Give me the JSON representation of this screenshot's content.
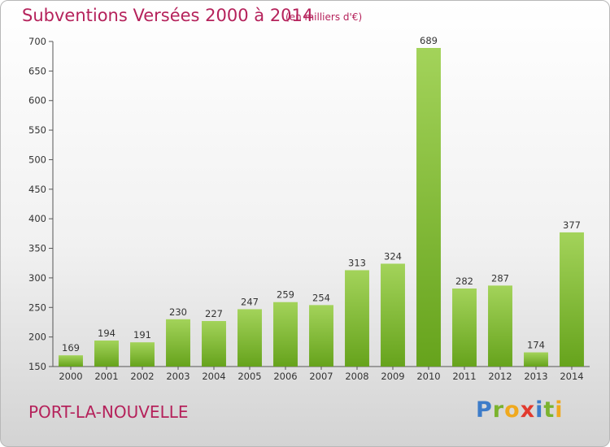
{
  "title": "Subventions Versées 2000 à 2014",
  "unit_note": "(en milliers d'€)",
  "location": "PORT-LA-NOUVELLE",
  "brand": {
    "letters": [
      {
        "char": "P",
        "color": "#3d7cc9"
      },
      {
        "char": "r",
        "color": "#7bb32e"
      },
      {
        "char": "o",
        "color": "#f0a91e"
      },
      {
        "char": "x",
        "color": "#e23a2e"
      },
      {
        "char": "i",
        "color": "#3d7cc9"
      },
      {
        "char": "t",
        "color": "#7bb32e"
      },
      {
        "char": "i",
        "color": "#f0a91e"
      }
    ]
  },
  "colors": {
    "bar_light": "#a3d35a",
    "bar_dark": "#66a31c",
    "title": "#b5225b"
  },
  "chart_data": {
    "type": "bar",
    "title": "Subventions Versées 2000 à 2014",
    "subtitle": "(en milliers d'€)",
    "categories": [
      "2000",
      "2001",
      "2002",
      "2003",
      "2004",
      "2005",
      "2006",
      "2007",
      "2008",
      "2009",
      "2010",
      "2011",
      "2012",
      "2013",
      "2014"
    ],
    "values": [
      169,
      194,
      191,
      230,
      227,
      247,
      259,
      254,
      313,
      324,
      689,
      282,
      287,
      174,
      377
    ],
    "data_labels": [
      "169",
      "194",
      "191",
      "230",
      "227",
      "247",
      "259",
      "254",
      "313",
      "324",
      "689",
      "282",
      "287",
      "174",
      "377"
    ],
    "ylim": [
      150,
      700
    ],
    "yticks": [
      "150",
      "200",
      "250",
      "300",
      "350",
      "400",
      "450",
      "500",
      "550",
      "600",
      "650",
      "700"
    ],
    "grid": false,
    "legend": "none"
  }
}
